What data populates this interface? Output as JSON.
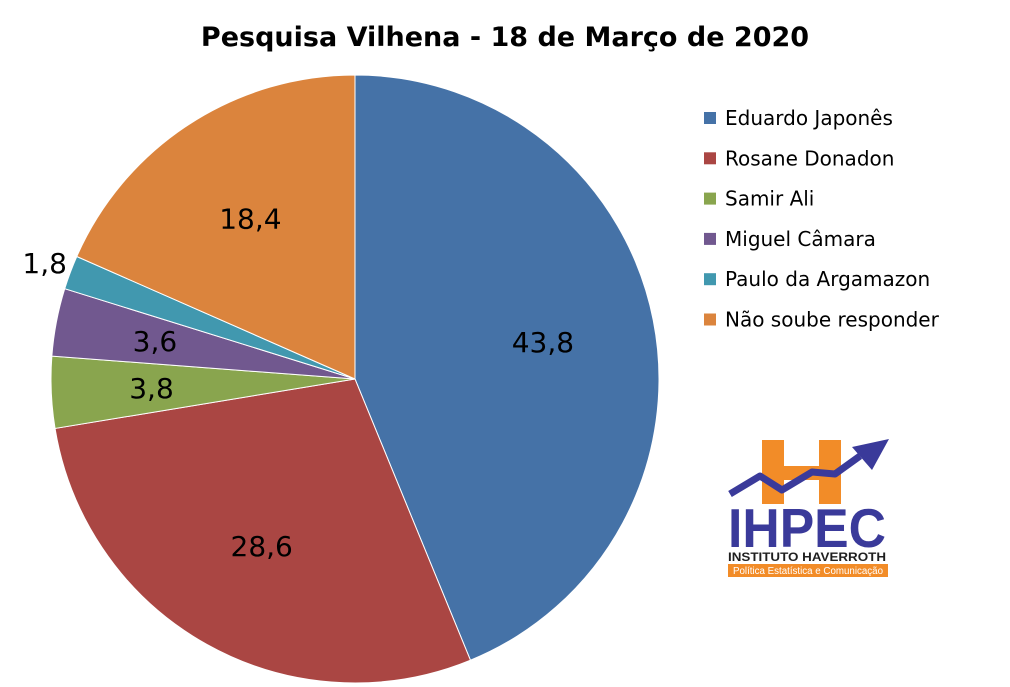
{
  "chart_data": {
    "type": "pie",
    "title": "Pesquisa Vilhena - 18 de Março de 2020",
    "slices": [
      {
        "name": "Eduardo Japonês",
        "value": 43.8,
        "label": "43,8",
        "color": "#4572A7"
      },
      {
        "name": "Rosane Donadon",
        "value": 28.6,
        "label": "28,6",
        "color": "#AA4643"
      },
      {
        "name": "Samir Ali",
        "value": 3.8,
        "label": "3,8",
        "color": "#89A54E"
      },
      {
        "name": "Miguel Câmara",
        "value": 3.6,
        "label": "3,6",
        "color": "#71588F"
      },
      {
        "name": "Paulo da Argamazon",
        "value": 1.8,
        "label": "1,8",
        "color": "#4198AF"
      },
      {
        "name": "Não soube responder",
        "value": 18.4,
        "label": "18,4",
        "color": "#DB843D"
      }
    ],
    "start_angle_deg": 0,
    "direction": "clockwise",
    "legend_position": "right"
  },
  "logo": {
    "text": "IHPEC",
    "line1": "INSTITUTO HAVERROTH",
    "line2": "Política Estatística e Comunicação",
    "colors": {
      "blue": "#3a3a9a",
      "orange": "#f28c28"
    }
  }
}
